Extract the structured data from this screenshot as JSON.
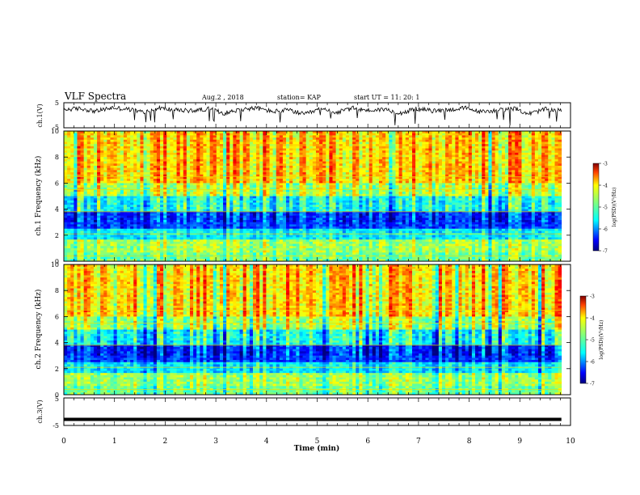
{
  "header": {
    "title": "VLF Spectra",
    "date": "Aug.2  , 2018",
    "station": "station= KAP",
    "start_ut": "start  UT  =   11: 20: 1"
  },
  "chart_data": [
    {
      "type": "line",
      "panel": "ch1-waveform",
      "ylabel": "ch.1(V)",
      "ylim": [
        -5,
        5
      ],
      "xlim": [
        0,
        10
      ],
      "series": [
        {
          "color": "#000000",
          "values": [
            2.2,
            2.7,
            1.6,
            3.0,
            2.4,
            1.2,
            2.9,
            2.0,
            1.8,
            2.6,
            0.8,
            2.3,
            2.9,
            1.5,
            2.1,
            0.3,
            2.5,
            1.1,
            2.8,
            1.9,
            2.4,
            0.9,
            2.6,
            1.7,
            2.2,
            2.9,
            1.3,
            2.0,
            2.7,
            0.6,
            2.4,
            1.8
          ]
        }
      ]
    },
    {
      "type": "heatmap",
      "panel": "ch1-spectrogram",
      "ylabel": "ch.1  Frequency (kHz)",
      "ylim": [
        0,
        10
      ],
      "xlim": [
        0,
        10
      ],
      "colorbar": {
        "label": "log(PSD)(V²/Hz)",
        "range": [
          -7,
          -3
        ],
        "ticks": [
          "-3",
          "-4",
          "-5",
          "-6",
          "-7"
        ]
      }
    },
    {
      "type": "heatmap",
      "panel": "ch2-spectrogram",
      "ylabel": "ch.2  Frequency (kHz)",
      "ylim": [
        0,
        10
      ],
      "xlim": [
        0,
        10
      ],
      "colorbar": {
        "label": "log(PSD)(V²/Hz)",
        "range": [
          -7,
          -3
        ],
        "ticks": [
          "-3",
          "-4",
          "-5",
          "-6",
          "-7"
        ]
      }
    },
    {
      "type": "line",
      "panel": "ch3-waveform",
      "ylabel": "ch.3(V)",
      "ylim": [
        -5,
        5
      ],
      "xlim": [
        0,
        10
      ],
      "series": [
        {
          "color": "#000000",
          "values": [
            -2.8,
            -2.8
          ]
        }
      ]
    }
  ],
  "axes": {
    "xlabel": "Time  (min)",
    "xticks": [
      "0",
      "1",
      "2",
      "3",
      "4",
      "5",
      "6",
      "7",
      "8",
      "9",
      "10"
    ],
    "wave_yticks": [
      "5",
      "-5"
    ],
    "freq_yticks": [
      "0",
      "2",
      "4",
      "6",
      "8",
      "10"
    ]
  }
}
